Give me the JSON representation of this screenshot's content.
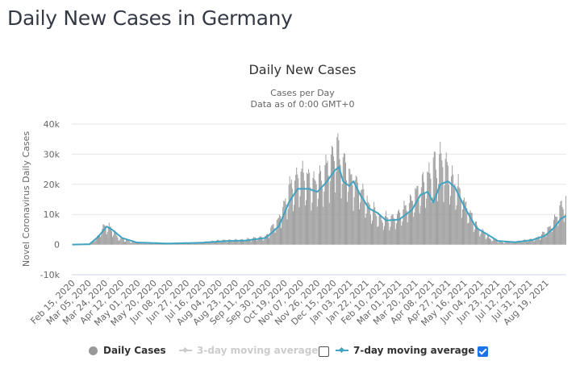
{
  "page": {
    "title": "Daily New Cases in Germany"
  },
  "legend": {
    "items": [
      {
        "label": "Daily Cases",
        "enabled": true,
        "color": "#999999",
        "symbol": "circle"
      },
      {
        "label": "3-day moving average",
        "enabled": false,
        "color": "#cccccc",
        "symbol": "line-diamond",
        "checkbox_checked": false
      },
      {
        "label": "7-day moving average",
        "enabled": true,
        "color": "#40a3c1",
        "symbol": "line-diamond",
        "checkbox_checked": true
      }
    ]
  },
  "chart_data": {
    "type": "bar",
    "title": "Daily New Cases",
    "subtitle_lines": [
      "Cases per Day",
      "Data as of 0:00 GMT+0"
    ],
    "xlabel": "",
    "ylabel": "Novel Coronavirus Daily Cases",
    "ylim": [
      -10000,
      40000
    ],
    "yticks": [
      -10000,
      0,
      10000,
      20000,
      30000,
      40000
    ],
    "ytick_labels": [
      "-10k",
      "0",
      "10k",
      "20k",
      "30k",
      "40k"
    ],
    "grid": true,
    "legend_position": "bottom",
    "x_start_date": "Feb 15, 2020",
    "x_days": 575,
    "xtick_labels": [
      "Feb 15, 2020",
      "Mar 05, 2020",
      "Mar 24, 2020",
      "Apr 12, 2020",
      "May 01, 2020",
      "May 20, 2020",
      "Jun 08, 2020",
      "Jun 27, 2020",
      "Jul 16, 2020",
      "Aug 04, 2020",
      "Aug 23, 2020",
      "Sep 11, 2020",
      "Sep 30, 2020",
      "Oct 19, 2020",
      "Nov 07, 2020",
      "Nov 26, 2020",
      "Dec 15, 2020",
      "Jan 03, 2021",
      "Jan 22, 2021",
      "Feb 10, 2021",
      "Mar 01, 2021",
      "Mar 20, 2021",
      "Apr 08, 2021",
      "Apr 27, 2021",
      "May 16, 2021",
      "Jun 04, 2021",
      "Jun 23, 2021",
      "Jul 12, 2021",
      "Jul 31, 2021",
      "Aug 19, 2021"
    ],
    "xtick_interval_days": 19,
    "series": [
      {
        "name": "Daily Cases",
        "type": "bar",
        "color": "#999999",
        "keypoints_day_value": [
          [
            0,
            0
          ],
          [
            20,
            200
          ],
          [
            30,
            2500
          ],
          [
            38,
            6200
          ],
          [
            45,
            5000
          ],
          [
            55,
            2000
          ],
          [
            70,
            800
          ],
          [
            100,
            400
          ],
          [
            140,
            500
          ],
          [
            170,
            1200
          ],
          [
            200,
            1500
          ],
          [
            225,
            2500
          ],
          [
            240,
            8000
          ],
          [
            255,
            18000
          ],
          [
            265,
            22000
          ],
          [
            280,
            19000
          ],
          [
            295,
            22000
          ],
          [
            305,
            30000
          ],
          [
            312,
            28000
          ],
          [
            322,
            22000
          ],
          [
            330,
            20000
          ],
          [
            345,
            12000
          ],
          [
            360,
            8000
          ],
          [
            380,
            9000
          ],
          [
            395,
            14000
          ],
          [
            410,
            20000
          ],
          [
            420,
            23000
          ],
          [
            430,
            26000
          ],
          [
            440,
            22000
          ],
          [
            455,
            14000
          ],
          [
            470,
            6000
          ],
          [
            485,
            2000
          ],
          [
            500,
            700
          ],
          [
            520,
            1000
          ],
          [
            540,
            2000
          ],
          [
            555,
            5000
          ],
          [
            565,
            10000
          ],
          [
            574,
            13000
          ]
        ],
        "weekly_pattern": [
          1.15,
          1.25,
          1.2,
          1.1,
          0.95,
          0.6,
          0.75
        ]
      },
      {
        "name": "7-day moving average",
        "type": "line",
        "color": "#40a3c1",
        "keypoints_day_value": [
          [
            0,
            0
          ],
          [
            20,
            100
          ],
          [
            30,
            2500
          ],
          [
            40,
            6000
          ],
          [
            47,
            4800
          ],
          [
            58,
            2200
          ],
          [
            75,
            700
          ],
          [
            110,
            350
          ],
          [
            150,
            600
          ],
          [
            180,
            1200
          ],
          [
            200,
            1300
          ],
          [
            225,
            2200
          ],
          [
            240,
            6000
          ],
          [
            252,
            14000
          ],
          [
            262,
            18500
          ],
          [
            275,
            18500
          ],
          [
            285,
            17500
          ],
          [
            295,
            20500
          ],
          [
            305,
            24500
          ],
          [
            310,
            25800
          ],
          [
            315,
            21000
          ],
          [
            322,
            19500
          ],
          [
            327,
            21000
          ],
          [
            335,
            16500
          ],
          [
            345,
            12000
          ],
          [
            355,
            10500
          ],
          [
            365,
            8000
          ],
          [
            380,
            8300
          ],
          [
            395,
            11500
          ],
          [
            405,
            16500
          ],
          [
            413,
            17500
          ],
          [
            420,
            14000
          ],
          [
            428,
            20000
          ],
          [
            437,
            21000
          ],
          [
            445,
            19000
          ],
          [
            457,
            12000
          ],
          [
            470,
            5500
          ],
          [
            482,
            3500
          ],
          [
            495,
            1200
          ],
          [
            515,
            800
          ],
          [
            535,
            1500
          ],
          [
            550,
            3000
          ],
          [
            560,
            5500
          ],
          [
            568,
            8500
          ],
          [
            574,
            9500
          ]
        ]
      }
    ]
  }
}
